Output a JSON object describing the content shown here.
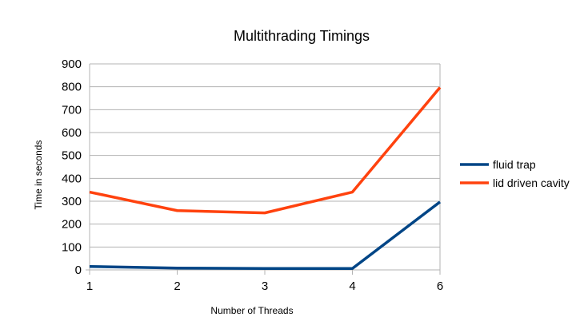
{
  "chart_data": {
    "type": "line",
    "title": "Multithrading Timings",
    "xlabel": "Number of Threads",
    "ylabel": "Time in seconds",
    "categories": [
      "1",
      "2",
      "3",
      "4",
      "6"
    ],
    "ylim": [
      0,
      900
    ],
    "yticks": [
      "0",
      "100",
      "200",
      "300",
      "400",
      "500",
      "600",
      "700",
      "800",
      "900"
    ],
    "grid": true,
    "legend_position": "right",
    "series": [
      {
        "name": "fluid trap",
        "color": "#004586",
        "values": [
          15,
          8,
          6,
          6,
          297
        ]
      },
      {
        "name": "lid driven cavity",
        "color": "#ff420e",
        "values": [
          340,
          259,
          249,
          340,
          797
        ]
      }
    ]
  }
}
